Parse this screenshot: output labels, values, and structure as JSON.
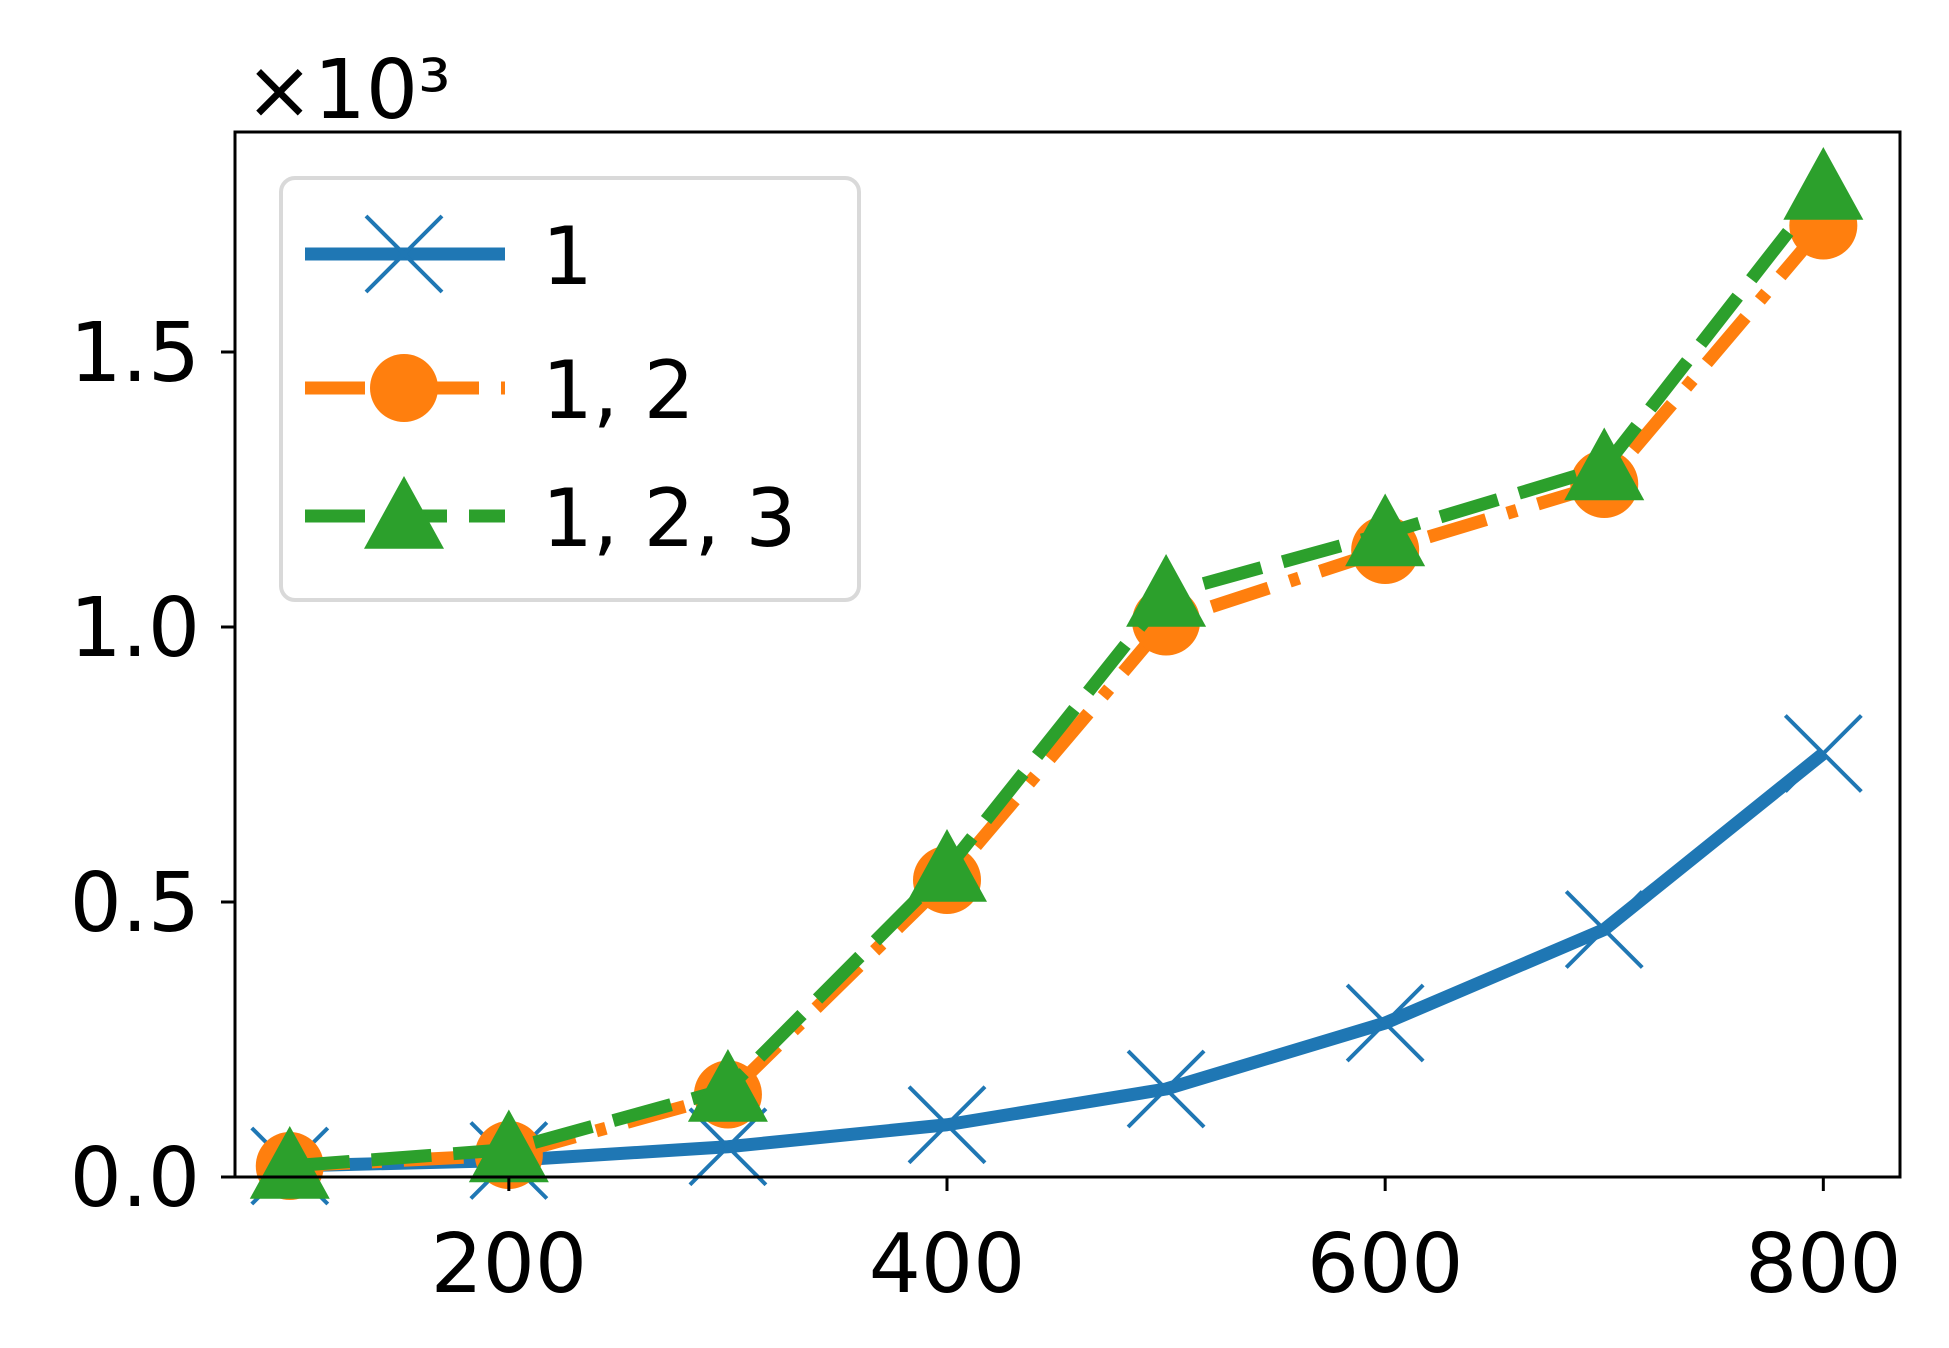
{
  "chart_data": {
    "type": "line",
    "title": "",
    "xlabel": "",
    "ylabel": "",
    "y_scale_label": "×10³",
    "xlim": [
      75,
      835
    ],
    "ylim": [
      0,
      1.9
    ],
    "x_ticks": [
      200,
      400,
      600,
      800
    ],
    "y_ticks": [
      0.0,
      0.5,
      1.0,
      1.5
    ],
    "x_tick_labels": [
      "200",
      "400",
      "600",
      "800"
    ],
    "y_tick_labels": [
      "0.0",
      "0.5",
      "1.0",
      "1.5"
    ],
    "grid": false,
    "legend_position": "top-left",
    "x": [
      100,
      200,
      300,
      400,
      500,
      600,
      700,
      800
    ],
    "series": [
      {
        "name": "1",
        "color": "#1f77b4",
        "linestyle": "solid",
        "marker": "x",
        "values": [
          0.02,
          0.03,
          0.055,
          0.095,
          0.16,
          0.28,
          0.45,
          0.77
        ]
      },
      {
        "name": "1, 2",
        "color": "#ff7f0e",
        "linestyle": "dashdot",
        "marker": "circle",
        "values": [
          0.02,
          0.04,
          0.15,
          0.54,
          1.01,
          1.14,
          1.26,
          1.73
        ]
      },
      {
        "name": "1, 2, 3",
        "color": "#2ca02c",
        "linestyle": "dashed",
        "marker": "triangle",
        "values": [
          0.02,
          0.05,
          0.16,
          0.56,
          1.06,
          1.17,
          1.29,
          1.8
        ]
      }
    ]
  }
}
